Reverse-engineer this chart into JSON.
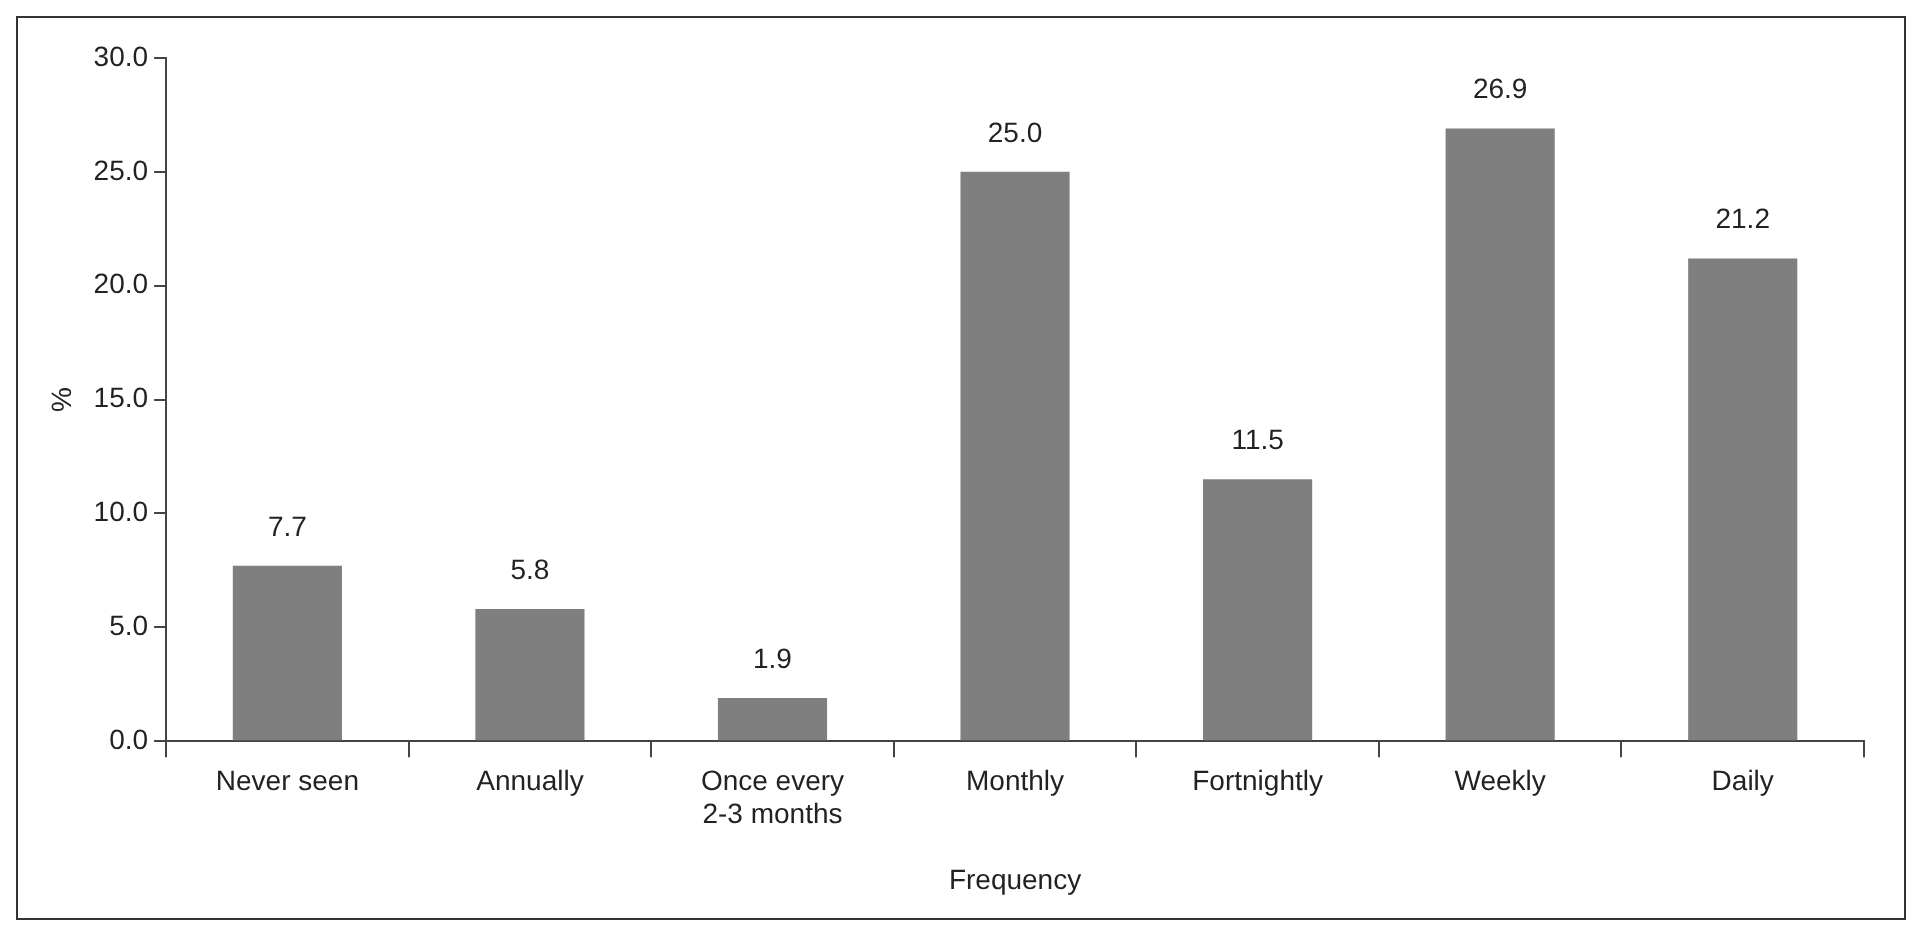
{
  "chart_data": {
    "type": "bar",
    "xlabel": "Frequency",
    "ylabel": "%",
    "categories": [
      "Never seen",
      "Annually",
      "Once every 2-3 months",
      "Monthly",
      "Fortnightly",
      "Weekly",
      "Daily"
    ],
    "values": [
      7.7,
      5.8,
      1.9,
      25.0,
      11.5,
      26.9,
      21.2
    ],
    "value_labels": [
      "7.7",
      "5.8",
      "1.9",
      "25.0",
      "11.5",
      "26.9",
      "21.2"
    ],
    "color": "#7f7f7f",
    "ylim": [
      0,
      30
    ],
    "yticks": [
      {
        "value": 0,
        "label": "0.0"
      },
      {
        "value": 5,
        "label": "5.0"
      },
      {
        "value": 10,
        "label": "10.0"
      },
      {
        "value": 15,
        "label": "15.0"
      },
      {
        "value": 20,
        "label": "20.0"
      },
      {
        "value": 25,
        "label": "25.0"
      },
      {
        "value": 30,
        "label": "30.0"
      }
    ],
    "grid": false,
    "legend": false
  }
}
